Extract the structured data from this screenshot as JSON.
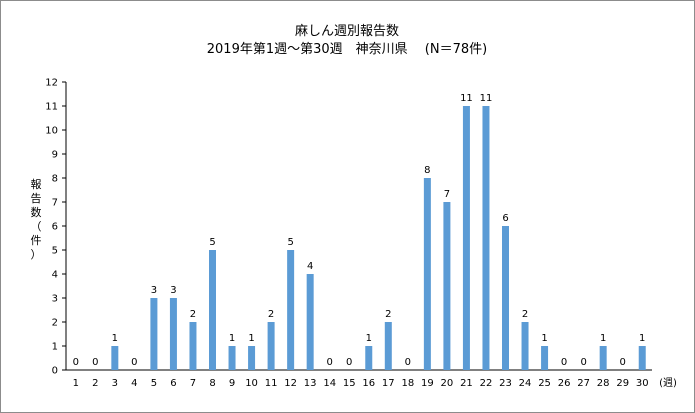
{
  "chart_data": {
    "type": "bar",
    "title": "麻しん週別報告数",
    "subtitle": "2019年第1週～第30週　神奈川県　 (N＝78件)",
    "ylabel": [
      "報",
      "告",
      "数",
      "（",
      "件",
      "）"
    ],
    "xlabel": "(週)",
    "ylim": [
      0,
      12
    ],
    "yticks": [
      0,
      1,
      2,
      3,
      4,
      5,
      6,
      7,
      8,
      9,
      10,
      11,
      12
    ],
    "categories": [
      "1",
      "2",
      "3",
      "4",
      "5",
      "6",
      "7",
      "8",
      "9",
      "10",
      "11",
      "12",
      "13",
      "14",
      "15",
      "16",
      "17",
      "18",
      "19",
      "20",
      "21",
      "22",
      "23",
      "24",
      "25",
      "26",
      "27",
      "28",
      "29",
      "30"
    ],
    "values": [
      0,
      0,
      1,
      0,
      3,
      3,
      2,
      5,
      1,
      1,
      2,
      5,
      4,
      0,
      0,
      1,
      2,
      0,
      8,
      7,
      11,
      11,
      6,
      2,
      1,
      0,
      0,
      1,
      0,
      1
    ],
    "bar_color": "#5b9bd5",
    "grid": false,
    "legend": "none"
  }
}
